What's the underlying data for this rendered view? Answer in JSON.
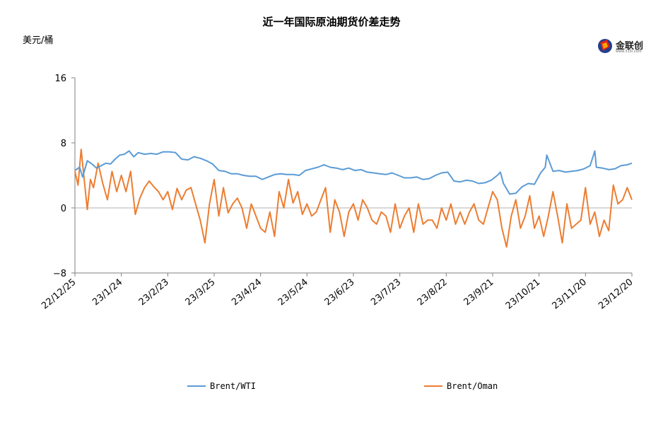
{
  "chart_data": {
    "type": "line",
    "title": "近一年国际原油期货价差走势",
    "ylabel": "美元/桶",
    "ylim": [
      -8,
      16
    ],
    "yticks": [
      16,
      8,
      0,
      -8
    ],
    "xlim": [
      "2022-12-25",
      "2023-12-20"
    ],
    "xticks": [
      "22/12/25",
      "23/1/24",
      "23/2/23",
      "23/3/25",
      "23/4/24",
      "23/5/24",
      "23/6/23",
      "23/7/23",
      "23/8/22",
      "23/9/21",
      "23/10/21",
      "23/11/20",
      "23/12/20"
    ],
    "grid": false,
    "legend_position": "bottom",
    "series": [
      {
        "name": "Brent/WTI",
        "color": "#5b9bd5",
        "x": [
          "2022-12-25",
          "2022-12-28",
          "2022-12-30",
          "2023-01-02",
          "2023-01-05",
          "2023-01-08",
          "2023-01-11",
          "2023-01-14",
          "2023-01-17",
          "2023-01-20",
          "2023-01-23",
          "2023-01-26",
          "2023-01-29",
          "2023-02-01",
          "2023-02-04",
          "2023-02-08",
          "2023-02-12",
          "2023-02-16",
          "2023-02-20",
          "2023-02-24",
          "2023-02-28",
          "2023-03-04",
          "2023-03-08",
          "2023-03-12",
          "2023-03-16",
          "2023-03-20",
          "2023-03-24",
          "2023-03-28",
          "2023-04-01",
          "2023-04-05",
          "2023-04-09",
          "2023-04-13",
          "2023-04-17",
          "2023-04-21",
          "2023-04-25",
          "2023-04-29",
          "2023-05-03",
          "2023-05-07",
          "2023-05-11",
          "2023-05-15",
          "2023-05-19",
          "2023-05-23",
          "2023-05-27",
          "2023-05-31",
          "2023-06-04",
          "2023-06-08",
          "2023-06-12",
          "2023-06-16",
          "2023-06-20",
          "2023-06-24",
          "2023-06-28",
          "2023-07-02",
          "2023-07-06",
          "2023-07-10",
          "2023-07-14",
          "2023-07-18",
          "2023-07-22",
          "2023-07-26",
          "2023-07-30",
          "2023-08-03",
          "2023-08-07",
          "2023-08-11",
          "2023-08-15",
          "2023-08-19",
          "2023-08-23",
          "2023-08-27",
          "2023-08-31",
          "2023-09-04",
          "2023-09-08",
          "2023-09-12",
          "2023-09-16",
          "2023-09-20",
          "2023-09-24",
          "2023-09-26",
          "2023-09-28",
          "2023-10-02",
          "2023-10-06",
          "2023-10-10",
          "2023-10-14",
          "2023-10-18",
          "2023-10-22",
          "2023-10-25",
          "2023-10-26",
          "2023-10-30",
          "2023-11-03",
          "2023-11-07",
          "2023-11-11",
          "2023-11-15",
          "2023-11-19",
          "2023-11-23",
          "2023-11-26",
          "2023-11-27",
          "2023-12-01",
          "2023-12-05",
          "2023-12-09",
          "2023-12-13",
          "2023-12-17",
          "2023-12-20"
        ],
        "values": [
          4.6,
          5.0,
          3.8,
          5.8,
          5.4,
          4.9,
          5.2,
          5.5,
          5.4,
          6.0,
          6.5,
          6.6,
          7.0,
          6.3,
          6.8,
          6.6,
          6.7,
          6.6,
          6.9,
          6.9,
          6.8,
          6.0,
          5.9,
          6.3,
          6.1,
          5.8,
          5.4,
          4.6,
          4.5,
          4.2,
          4.2,
          4.0,
          3.9,
          3.9,
          3.5,
          3.8,
          4.1,
          4.2,
          4.1,
          4.1,
          4.0,
          4.6,
          4.8,
          5.0,
          5.3,
          5.0,
          4.9,
          4.7,
          4.9,
          4.6,
          4.7,
          4.4,
          4.3,
          4.2,
          4.1,
          4.3,
          4.0,
          3.7,
          3.7,
          3.8,
          3.5,
          3.6,
          4.0,
          4.3,
          4.4,
          3.3,
          3.2,
          3.4,
          3.3,
          3.0,
          3.1,
          3.4,
          4.0,
          4.4,
          3.0,
          1.7,
          1.8,
          2.6,
          3.0,
          2.9,
          4.3,
          5.0,
          6.5,
          4.5,
          4.6,
          4.4,
          4.5,
          4.6,
          4.8,
          5.2,
          7.0,
          5.0,
          4.9,
          4.7,
          4.8,
          5.2,
          5.3,
          5.5
        ]
      },
      {
        "name": "Brent/Oman",
        "color": "#ed7d31",
        "x": [
          "2022-12-25",
          "2022-12-27",
          "2022-12-29",
          "2022-12-31",
          "2023-01-02",
          "2023-01-04",
          "2023-01-06",
          "2023-01-09",
          "2023-01-12",
          "2023-01-15",
          "2023-01-18",
          "2023-01-21",
          "2023-01-24",
          "2023-01-27",
          "2023-01-30",
          "2023-02-02",
          "2023-02-05",
          "2023-02-08",
          "2023-02-11",
          "2023-02-14",
          "2023-02-17",
          "2023-02-20",
          "2023-02-23",
          "2023-02-26",
          "2023-03-01",
          "2023-03-04",
          "2023-03-07",
          "2023-03-10",
          "2023-03-13",
          "2023-03-16",
          "2023-03-19",
          "2023-03-22",
          "2023-03-25",
          "2023-03-28",
          "2023-03-31",
          "2023-04-03",
          "2023-04-06",
          "2023-04-09",
          "2023-04-12",
          "2023-04-15",
          "2023-04-18",
          "2023-04-21",
          "2023-04-24",
          "2023-04-27",
          "2023-04-30",
          "2023-05-03",
          "2023-05-06",
          "2023-05-09",
          "2023-05-12",
          "2023-05-15",
          "2023-05-18",
          "2023-05-21",
          "2023-05-24",
          "2023-05-27",
          "2023-05-30",
          "2023-06-02",
          "2023-06-05",
          "2023-06-08",
          "2023-06-11",
          "2023-06-14",
          "2023-06-17",
          "2023-06-20",
          "2023-06-23",
          "2023-06-26",
          "2023-06-29",
          "2023-07-02",
          "2023-07-05",
          "2023-07-08",
          "2023-07-11",
          "2023-07-14",
          "2023-07-17",
          "2023-07-20",
          "2023-07-23",
          "2023-07-26",
          "2023-07-29",
          "2023-08-01",
          "2023-08-04",
          "2023-08-07",
          "2023-08-10",
          "2023-08-13",
          "2023-08-16",
          "2023-08-19",
          "2023-08-22",
          "2023-08-25",
          "2023-08-28",
          "2023-08-31",
          "2023-09-03",
          "2023-09-06",
          "2023-09-09",
          "2023-09-12",
          "2023-09-15",
          "2023-09-18",
          "2023-09-21",
          "2023-09-24",
          "2023-09-27",
          "2023-09-30",
          "2023-10-03",
          "2023-10-06",
          "2023-10-09",
          "2023-10-12",
          "2023-10-15",
          "2023-10-18",
          "2023-10-21",
          "2023-10-24",
          "2023-10-27",
          "2023-10-30",
          "2023-11-02",
          "2023-11-05",
          "2023-11-08",
          "2023-11-11",
          "2023-11-14",
          "2023-11-17",
          "2023-11-20",
          "2023-11-23",
          "2023-11-26",
          "2023-11-29",
          "2023-12-02",
          "2023-12-05",
          "2023-12-08",
          "2023-12-11",
          "2023-12-14",
          "2023-12-17",
          "2023-12-20"
        ],
        "values": [
          4.5,
          2.8,
          7.2,
          3.5,
          -0.2,
          3.5,
          2.5,
          5.5,
          3.0,
          1.0,
          4.5,
          2.0,
          4.0,
          2.0,
          4.5,
          -0.8,
          1.2,
          2.5,
          3.3,
          2.6,
          2.0,
          1.0,
          2.0,
          -0.2,
          2.4,
          1.0,
          2.2,
          2.5,
          0.5,
          -1.5,
          -4.3,
          0.5,
          3.5,
          -1.0,
          2.5,
          -0.6,
          0.5,
          1.2,
          0.0,
          -2.5,
          0.5,
          -1.0,
          -2.5,
          -3.0,
          -0.5,
          -3.5,
          2.0,
          0.0,
          3.5,
          0.6,
          2.0,
          -0.8,
          0.5,
          -1.0,
          -0.5,
          1.0,
          2.5,
          -3.0,
          1.0,
          -0.5,
          -3.5,
          -0.5,
          0.5,
          -1.5,
          1.0,
          0.0,
          -1.5,
          -2.0,
          -0.5,
          -1.0,
          -3.0,
          0.5,
          -2.5,
          -1.0,
          0.0,
          -3.0,
          0.5,
          -2.0,
          -1.5,
          -1.5,
          -2.5,
          0.0,
          -1.5,
          0.5,
          -2.0,
          -0.5,
          -2.0,
          -0.5,
          0.5,
          -1.5,
          -2.0,
          0.0,
          2.0,
          1.0,
          -2.5,
          -4.8,
          -1.0,
          1.0,
          -2.5,
          -1.0,
          1.5,
          -2.5,
          -1.0,
          -3.5,
          -1.0,
          2.0,
          -1.0,
          -4.3,
          0.5,
          -2.5,
          -2.0,
          -1.5,
          2.5,
          -2.0,
          -0.5,
          -3.5,
          -1.5,
          -2.8,
          2.8,
          0.5,
          1.0,
          2.5,
          1.0
        ]
      }
    ]
  },
  "logo": {
    "name": "金联创",
    "sub": "www.315i.com"
  }
}
